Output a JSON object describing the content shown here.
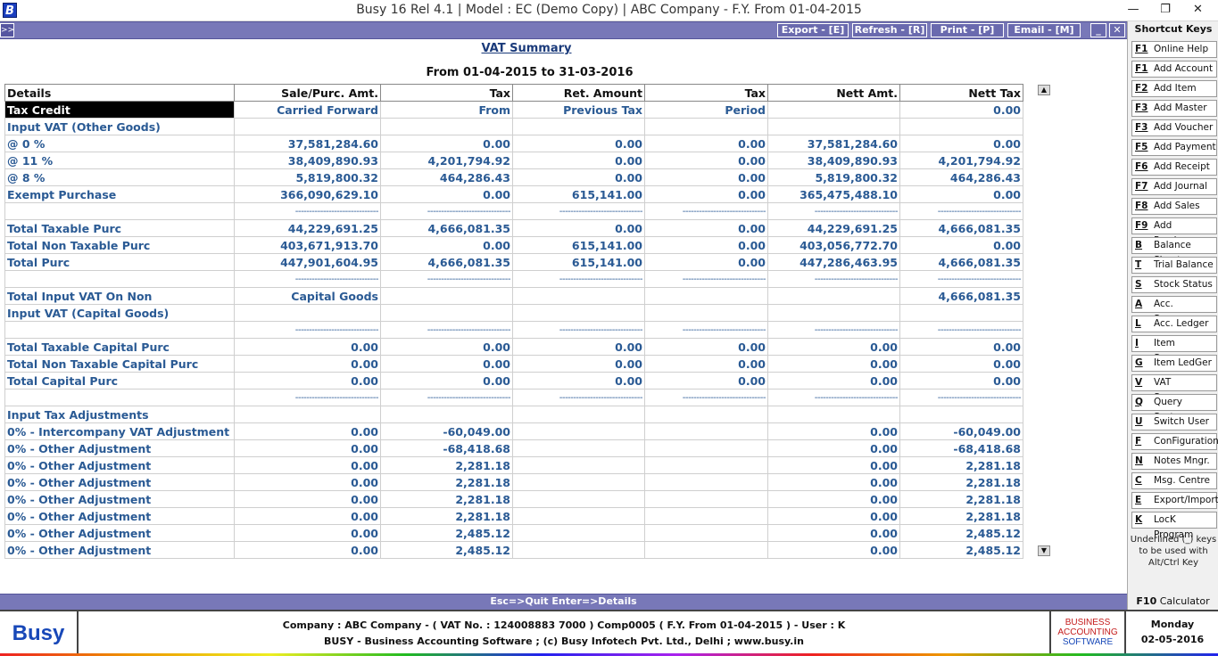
{
  "window": {
    "logo_letter": "B",
    "title": "Busy 16  Rel 4.1  |  Model : EC (Demo Copy)  |  ABC Company - F.Y. From 01-04-2015",
    "min": "—",
    "max": "❐",
    "close": "✕"
  },
  "toolbar": {
    "expand": ">>",
    "export": "Export - [E]",
    "refresh": "Refresh - [R]",
    "print": "Print - [P]",
    "email": "Email - [M]",
    "minimize": "_",
    "close": "✕"
  },
  "report": {
    "title": "VAT Summary",
    "period": "From 01-04-2015 to 31-03-2016",
    "columns": [
      "Details",
      "Sale/Purc. Amt.",
      "Tax",
      "Ret. Amount",
      "Tax",
      "Nett Amt.",
      "Nett Tax"
    ],
    "rows": [
      {
        "type": "hl",
        "cells": [
          "Tax Credit",
          "Carried Forward",
          "From",
          "Previous Tax",
          "Period",
          "",
          "0.00"
        ]
      },
      {
        "type": "data",
        "cells": [
          "Input VAT (Other Goods)",
          "",
          "",
          "",
          "",
          "",
          ""
        ]
      },
      {
        "type": "data",
        "cells": [
          "@ 0 %",
          "37,581,284.60",
          "0.00",
          "0.00",
          "0.00",
          "37,581,284.60",
          "0.00"
        ]
      },
      {
        "type": "data",
        "cells": [
          "@ 11 %",
          "38,409,890.93",
          "4,201,794.92",
          "0.00",
          "0.00",
          "38,409,890.93",
          "4,201,794.92"
        ]
      },
      {
        "type": "data",
        "cells": [
          "@ 8 %",
          "5,819,800.32",
          "464,286.43",
          "0.00",
          "0.00",
          "5,819,800.32",
          "464,286.43"
        ]
      },
      {
        "type": "data",
        "cells": [
          "Exempt Purchase",
          "366,090,629.10",
          "0.00",
          "615,141.00",
          "0.00",
          "365,475,488.10",
          "0.00"
        ]
      },
      {
        "type": "dash",
        "cells": [
          "",
          "------------------------------",
          "------------------------------",
          "------------------------------",
          "------------------------------",
          "------------------------------",
          "------------------------------"
        ]
      },
      {
        "type": "data",
        "cells": [
          "Total Taxable Purc",
          "44,229,691.25",
          "4,666,081.35",
          "0.00",
          "0.00",
          "44,229,691.25",
          "4,666,081.35"
        ]
      },
      {
        "type": "data",
        "cells": [
          "Total Non Taxable Purc",
          "403,671,913.70",
          "0.00",
          "615,141.00",
          "0.00",
          "403,056,772.70",
          "0.00"
        ]
      },
      {
        "type": "data",
        "cells": [
          "Total Purc",
          "447,901,604.95",
          "4,666,081.35",
          "615,141.00",
          "0.00",
          "447,286,463.95",
          "4,666,081.35"
        ]
      },
      {
        "type": "dash",
        "cells": [
          "",
          "------------------------------",
          "------------------------------",
          "------------------------------",
          "------------------------------",
          "------------------------------",
          "------------------------------"
        ]
      },
      {
        "type": "data",
        "cells": [
          "Total Input VAT On Non",
          "Capital Goods",
          "",
          "",
          "",
          "",
          "4,666,081.35"
        ]
      },
      {
        "type": "data",
        "cells": [
          "Input VAT (Capital Goods)",
          "",
          "",
          "",
          "",
          "",
          ""
        ]
      },
      {
        "type": "dash",
        "cells": [
          "",
          "------------------------------",
          "------------------------------",
          "------------------------------",
          "------------------------------",
          "------------------------------",
          "------------------------------"
        ]
      },
      {
        "type": "data",
        "cells": [
          "Total Taxable Capital  Purc",
          "0.00",
          "0.00",
          "0.00",
          "0.00",
          "0.00",
          "0.00"
        ]
      },
      {
        "type": "data",
        "cells": [
          "Total Non Taxable Capital  Purc",
          "0.00",
          "0.00",
          "0.00",
          "0.00",
          "0.00",
          "0.00"
        ]
      },
      {
        "type": "data",
        "cells": [
          "Total Capital  Purc",
          "0.00",
          "0.00",
          "0.00",
          "0.00",
          "0.00",
          "0.00"
        ]
      },
      {
        "type": "dash",
        "cells": [
          "",
          "------------------------------",
          "------------------------------",
          "------------------------------",
          "------------------------------",
          "------------------------------",
          "------------------------------"
        ]
      },
      {
        "type": "data",
        "cells": [
          "Input Tax Adjustments",
          "",
          "",
          "",
          "",
          "",
          ""
        ]
      },
      {
        "type": "data",
        "cells": [
          "0% - Intercompany VAT Adjustment",
          "0.00",
          "-60,049.00",
          "",
          "",
          "0.00",
          "-60,049.00"
        ]
      },
      {
        "type": "data",
        "cells": [
          "0% - Other Adjustment",
          "0.00",
          "-68,418.68",
          "",
          "",
          "0.00",
          "-68,418.68"
        ]
      },
      {
        "type": "data",
        "cells": [
          "0% - Other Adjustment",
          "0.00",
          "2,281.18",
          "",
          "",
          "0.00",
          "2,281.18"
        ]
      },
      {
        "type": "data",
        "cells": [
          "0% - Other Adjustment",
          "0.00",
          "2,281.18",
          "",
          "",
          "0.00",
          "2,281.18"
        ]
      },
      {
        "type": "data",
        "cells": [
          "0% - Other Adjustment",
          "0.00",
          "2,281.18",
          "",
          "",
          "0.00",
          "2,281.18"
        ]
      },
      {
        "type": "data",
        "cells": [
          "0% - Other Adjustment",
          "0.00",
          "2,281.18",
          "",
          "",
          "0.00",
          "2,281.18"
        ]
      },
      {
        "type": "data",
        "cells": [
          "0% - Other Adjustment",
          "0.00",
          "2,485.12",
          "",
          "",
          "0.00",
          "2,485.12"
        ]
      },
      {
        "type": "data",
        "cells": [
          "0% - Other Adjustment",
          "0.00",
          "2,485.12",
          "",
          "",
          "0.00",
          "2,485.12"
        ]
      }
    ]
  },
  "scroll": {
    "up": "▲",
    "down": "▼"
  },
  "shortcuts": {
    "heading": "Shortcut Keys",
    "items": [
      {
        "key": "F1",
        "label": "Online Help"
      },
      {
        "key": "F1",
        "label": "Add Account"
      },
      {
        "key": "F2",
        "label": "Add Item"
      },
      {
        "key": "F3",
        "label": "Add Master"
      },
      {
        "key": "F3",
        "label": "Add Voucher"
      },
      {
        "key": "F5",
        "label": "Add Payment"
      },
      {
        "key": "F6",
        "label": "Add Receipt"
      },
      {
        "key": "F7",
        "label": "Add Journal"
      },
      {
        "key": "F8",
        "label": "Add Sales"
      },
      {
        "key": "F9",
        "label": "Add Purchase"
      },
      {
        "key": "B",
        "label": "Balance Sheet"
      },
      {
        "key": "T",
        "label": "Trial Balance"
      },
      {
        "key": "S",
        "label": "Stock Status"
      },
      {
        "key": "A",
        "label": "Acc. Summary"
      },
      {
        "key": "L",
        "label": "Acc. Ledger"
      },
      {
        "key": "I",
        "label": "Item Summary"
      },
      {
        "key": "G",
        "label": "Item LedGer"
      },
      {
        "key": "V",
        "label": "VAT Summary"
      },
      {
        "key": "Q",
        "label": "Query System"
      },
      {
        "key": "U",
        "label": "Switch User"
      },
      {
        "key": "F",
        "label": "ConFiguration"
      },
      {
        "key": "N",
        "label": "Notes Mngr."
      },
      {
        "key": "C",
        "label": "Msg. Centre"
      },
      {
        "key": "E",
        "label": "Export/Import"
      },
      {
        "key": "K",
        "label": "LocK Program"
      }
    ],
    "note": "Underlined (_) keys to be used with Alt/Ctrl Key"
  },
  "status": {
    "hint": "Esc=>Quit    Enter=>Details",
    "f10_key": "F10",
    "f10_label": "Calculator"
  },
  "footer": {
    "logo": "Busy",
    "line1": "Company : ABC Company - ( VAT No. : 124008883 7000 ) Comp0005 ( F.Y. From 01-04-2015 ) - User : K",
    "line2": "BUSY - Business Accounting Software  ;  (c) Busy Infotech Pvt. Ltd., Delhi  ;  www.busy.in",
    "bas1": "BUSINESS",
    "bas2": "ACCOUNTING",
    "bas3": "SOFTWARE",
    "day": "Monday",
    "date": "02-05-2016"
  },
  "colors": {
    "accent_bar": "#7878b8",
    "value_text": "#2a5a94",
    "brand_blue": "#1848b8"
  }
}
